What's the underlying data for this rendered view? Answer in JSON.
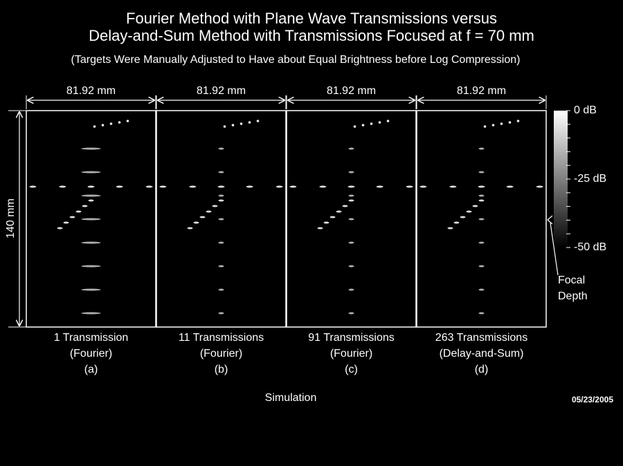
{
  "title_lines": [
    "Fourier Method with Plane Wave Transmissions versus",
    "Delay-and-Sum Method with Transmissions Focused at f = 70 mm"
  ],
  "subtitle": "(Targets Were Manually Adjusted to Have about Equal Brightness before Log Compression)",
  "depth_label": "140 mm",
  "panels": [
    {
      "width_label": "81.92 mm",
      "caption": [
        "1 Transmission",
        "(Fourier)",
        "(a)"
      ]
    },
    {
      "width_label": "81.92 mm",
      "caption": [
        "11 Transmissions",
        "(Fourier)",
        "(b)"
      ]
    },
    {
      "width_label": "81.92 mm",
      "caption": [
        "91 Transmissions",
        "(Fourier)",
        "(c)"
      ]
    },
    {
      "width_label": "81.92 mm",
      "caption": [
        "263 Transmissions",
        "(Delay-and-Sum)",
        "(d)"
      ]
    }
  ],
  "colorbar_labels": [
    "0 dB",
    "-25 dB",
    "-50 dB"
  ],
  "focal_label": [
    "Focal",
    "Depth"
  ],
  "footer": "Simulation",
  "date": "05/23/2005"
}
